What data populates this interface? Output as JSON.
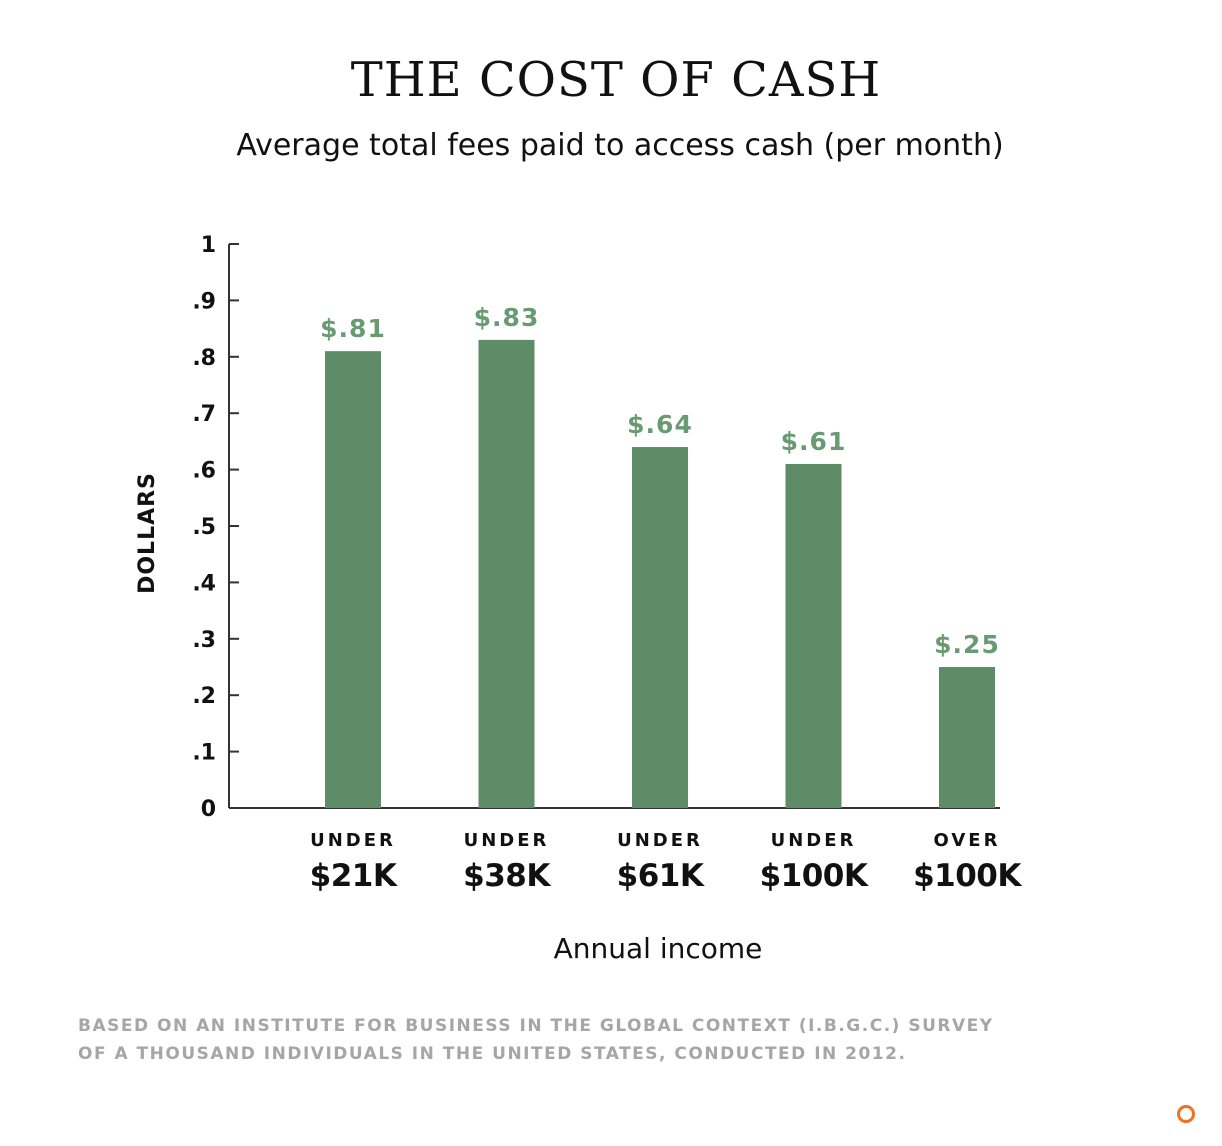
{
  "title": "THE COST OF CASH",
  "subtitle": "Average total fees paid to access cash (per month)",
  "footnote": [
    "BASED ON AN INSTITUTE FOR BUSINESS IN THE GLOBAL CONTEXT (I.B.G.C.) SURVEY",
    "OF A THOUSAND INDIVIDUALS IN THE UNITED STATES, CONDUCTED IN 2012."
  ],
  "colors": {
    "bar": "#5e8c66",
    "value_label": "#6a9a72",
    "footnote": "#a6a6a6",
    "logo": "#f36f21"
  },
  "chart_data": {
    "type": "bar",
    "title": "THE COST OF CASH",
    "subtitle": "Average total fees paid to access cash (per month)",
    "xlabel": "Annual income",
    "ylabel": "DOLLARS",
    "ylim": [
      0,
      1
    ],
    "yticks": [
      0,
      0.1,
      0.2,
      0.3,
      0.4,
      0.5,
      0.6,
      0.7,
      0.8,
      0.9,
      1
    ],
    "ytick_labels": [
      "0",
      ".1",
      ".2",
      ".3",
      ".4",
      ".5",
      ".6",
      ".7",
      ".8",
      ".9",
      "1"
    ],
    "categories": [
      {
        "top": "UNDER",
        "bottom": "$21K"
      },
      {
        "top": "UNDER",
        "bottom": "$38K"
      },
      {
        "top": "UNDER",
        "bottom": "$61K"
      },
      {
        "top": "UNDER",
        "bottom": "$100K"
      },
      {
        "top": "OVER",
        "bottom": "$100K"
      }
    ],
    "values": [
      0.81,
      0.83,
      0.64,
      0.61,
      0.25
    ],
    "value_labels": [
      "$.81",
      "$.83",
      "$.64",
      "$.61",
      "$.25"
    ],
    "grid": false,
    "legend": "none"
  }
}
